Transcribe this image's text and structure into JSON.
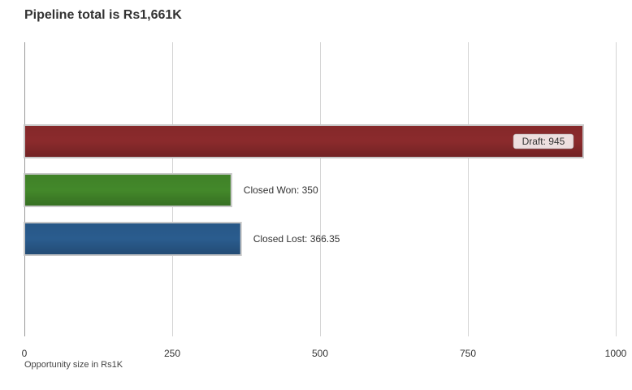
{
  "chart_data": {
    "type": "bar",
    "orientation": "horizontal",
    "title": "Pipeline total is Rs1,661K",
    "xlabel": "Opportunity size in Rs1K",
    "ylabel": "",
    "xlim": [
      0,
      1000
    ],
    "x_ticks": [
      "0",
      "250",
      "500",
      "750",
      "1000"
    ],
    "grid": true,
    "categories": [
      "Draft",
      "Closed Won",
      "Closed Lost"
    ],
    "values": [
      945,
      350,
      366.35
    ],
    "data_labels": [
      "Draft: 945",
      "Closed Won: 350",
      "Closed Lost: 366.35"
    ],
    "colors": [
      "#8b2a2c",
      "#43882a",
      "#2a5c8e"
    ]
  }
}
